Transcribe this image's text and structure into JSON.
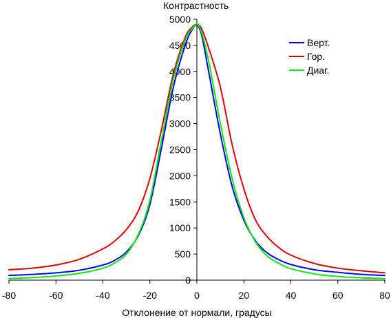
{
  "chart_data": {
    "type": "line",
    "title": "",
    "xlabel": "Отклонение от нормали, градусы",
    "ylabel": "Контрастность",
    "xlim": [
      -80,
      80
    ],
    "ylim": [
      0,
      5000
    ],
    "x_ticks": [
      -80,
      -60,
      -40,
      -20,
      0,
      20,
      40,
      60,
      80
    ],
    "y_ticks": [
      0,
      500,
      1000,
      1500,
      2000,
      2500,
      3000,
      3500,
      4000,
      4500,
      5000
    ],
    "grid": false,
    "legend_position": "top-right",
    "x": [
      -80,
      -70,
      -60,
      -50,
      -40,
      -35,
      -30,
      -25,
      -20,
      -15,
      -10,
      -5,
      -2,
      0,
      2,
      5,
      10,
      15,
      20,
      25,
      30,
      35,
      40,
      50,
      60,
      70,
      80
    ],
    "series": [
      {
        "name": "Верт.",
        "color": "#0000ff",
        "values": [
          90,
          110,
          140,
          190,
          290,
          380,
          540,
          850,
          1450,
          2550,
          3700,
          4500,
          4800,
          4880,
          4700,
          4000,
          2800,
          1800,
          1150,
          750,
          520,
          390,
          300,
          200,
          150,
          110,
          90
        ]
      },
      {
        "name": "Гор.",
        "color": "#dd0000",
        "values": [
          200,
          230,
          290,
          400,
          600,
          750,
          970,
          1320,
          1950,
          2900,
          3950,
          4650,
          4850,
          4900,
          4820,
          4450,
          3700,
          2600,
          1750,
          1150,
          830,
          620,
          480,
          320,
          230,
          180,
          140
        ]
      },
      {
        "name": "Диаг.",
        "color": "#00ee00",
        "values": [
          30,
          50,
          80,
          130,
          230,
          330,
          500,
          870,
          1530,
          2700,
          3850,
          4600,
          4820,
          4900,
          4750,
          4200,
          3000,
          1950,
          1200,
          730,
          460,
          320,
          220,
          120,
          70,
          45,
          30
        ]
      }
    ]
  }
}
